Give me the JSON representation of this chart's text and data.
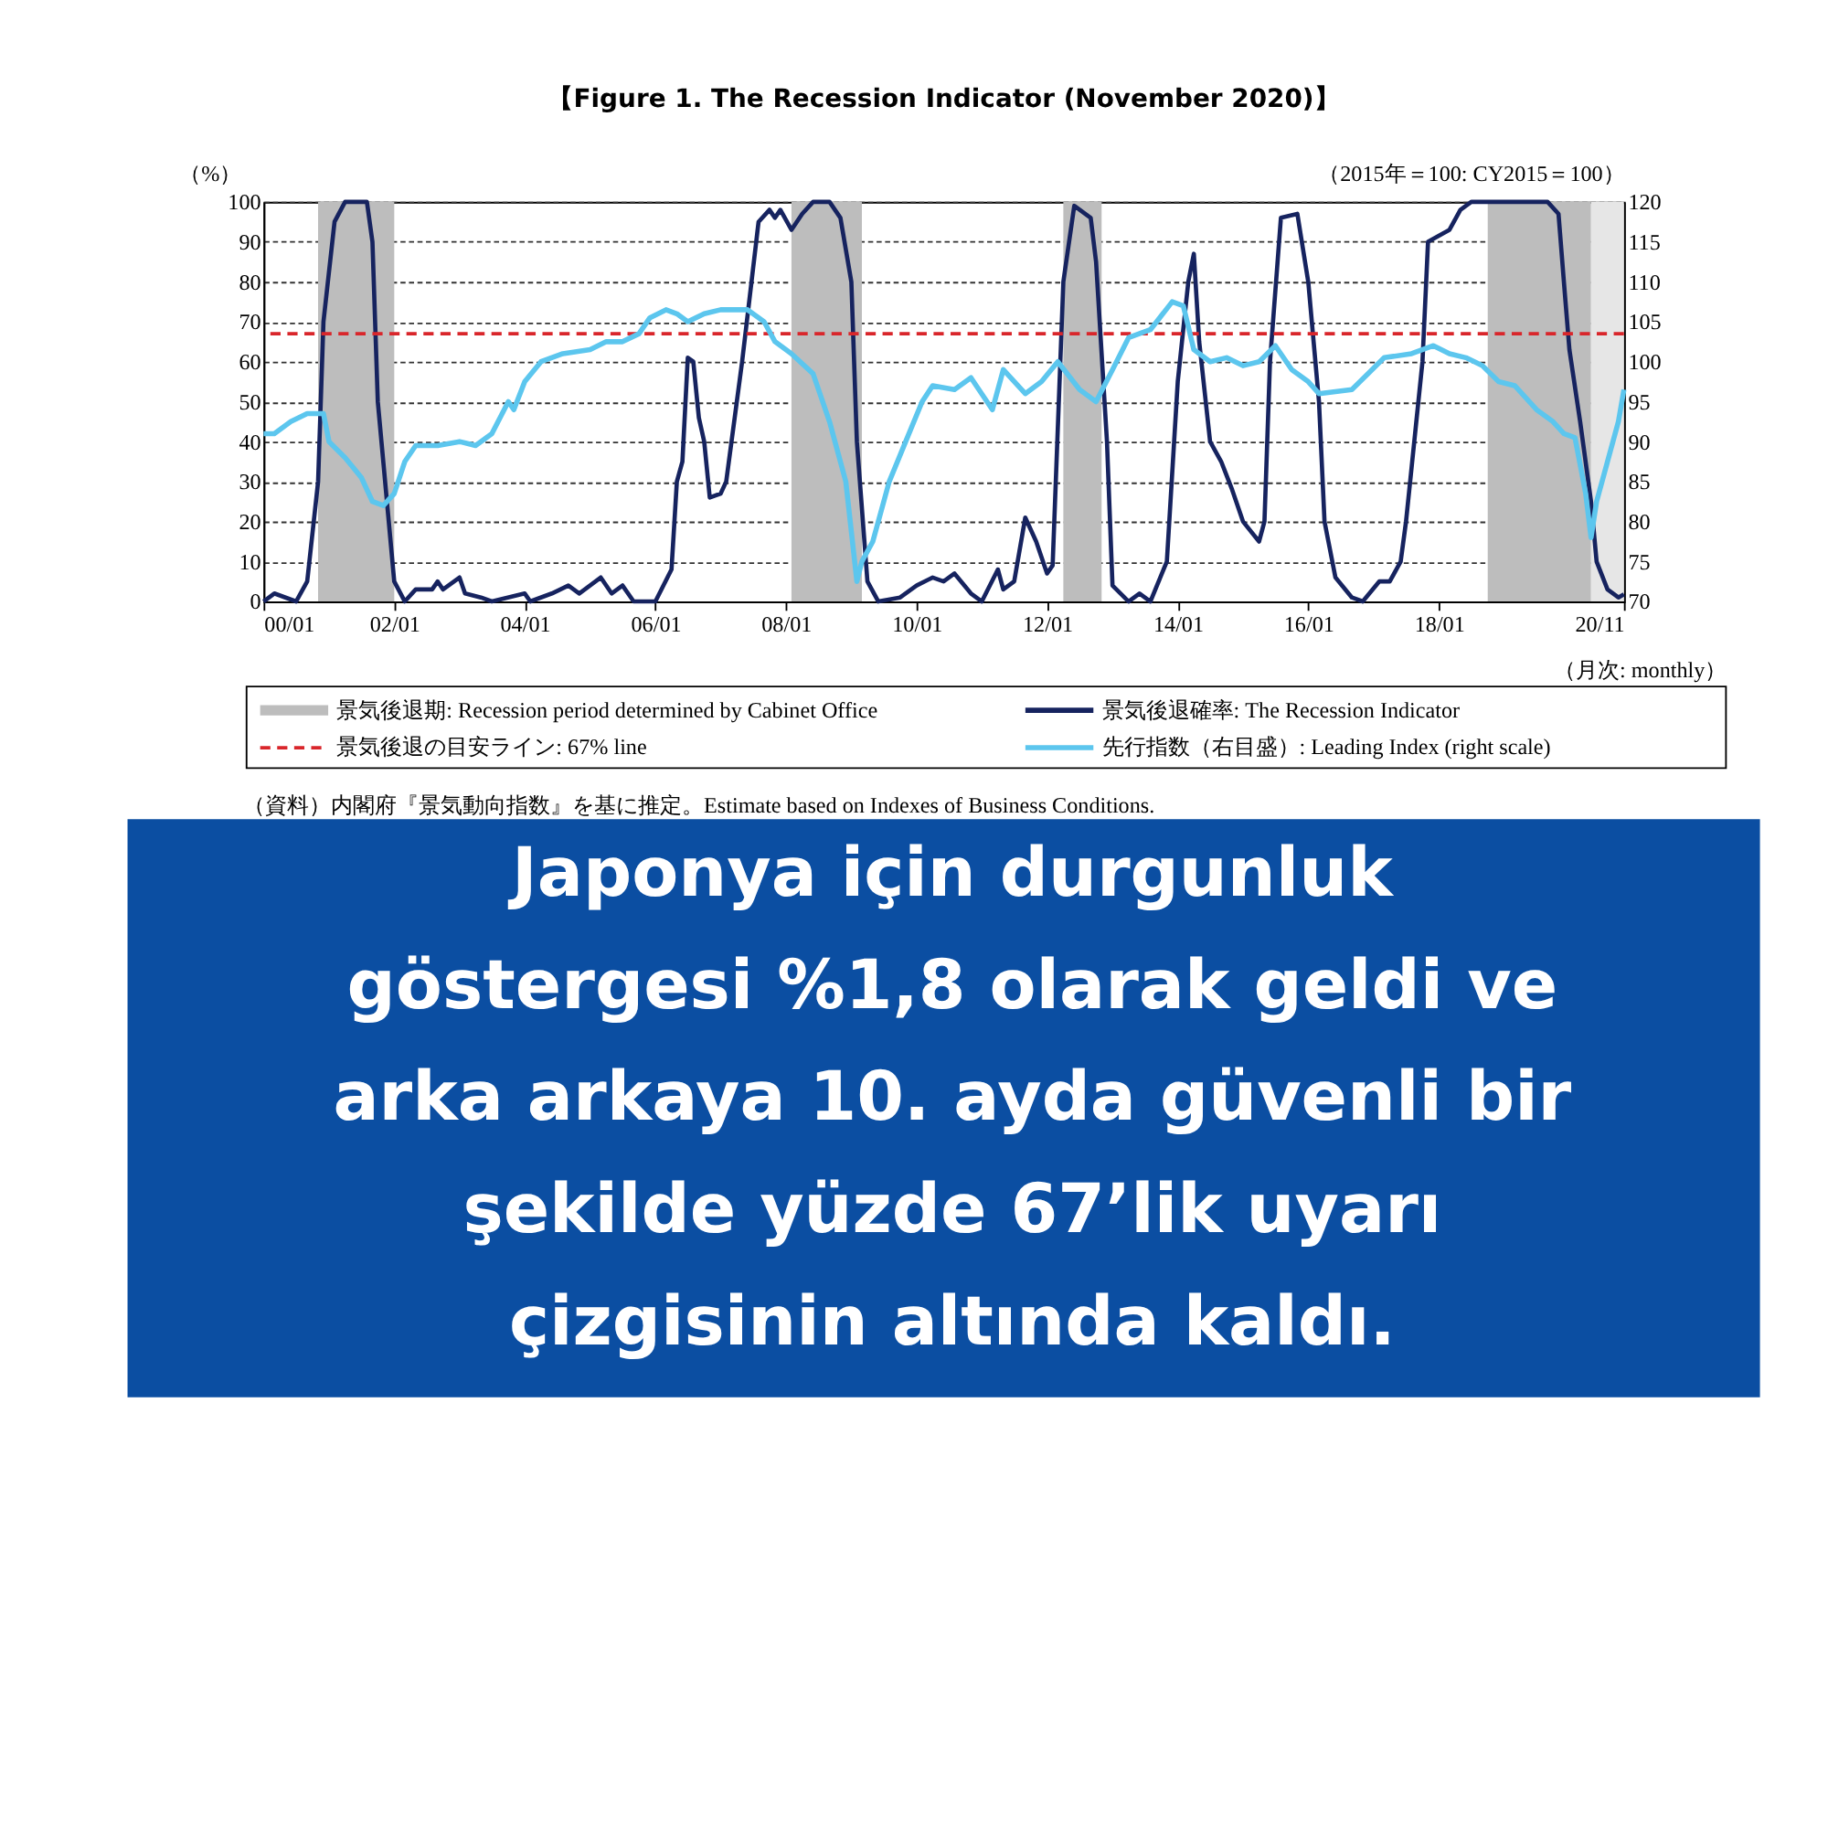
{
  "chart_data": {
    "type": "line",
    "title": "【Figure 1. The Recession Indicator (November 2020)】",
    "xlabel": "（月次: monthly）",
    "ylabel": "（%）",
    "y2label": "（2015年＝100: CY2015＝100）",
    "xlim": [
      "2000-01",
      "2020-11"
    ],
    "xticks": [
      {
        "value": "2000-01",
        "label": "00/01"
      },
      {
        "value": "2002-01",
        "label": "02/01"
      },
      {
        "value": "2004-01",
        "label": "04/01"
      },
      {
        "value": "2006-01",
        "label": "06/01"
      },
      {
        "value": "2008-01",
        "label": "08/01"
      },
      {
        "value": "2010-01",
        "label": "10/01"
      },
      {
        "value": "2012-01",
        "label": "12/01"
      },
      {
        "value": "2014-01",
        "label": "14/01"
      },
      {
        "value": "2016-01",
        "label": "16/01"
      },
      {
        "value": "2018-01",
        "label": "18/01"
      },
      {
        "value": "2020-11",
        "label": "20/11"
      }
    ],
    "ylim": [
      0,
      100
    ],
    "yticks": [
      0,
      10,
      20,
      30,
      40,
      50,
      60,
      70,
      80,
      90,
      100
    ],
    "y2lim": [
      70,
      120
    ],
    "y2ticks": [
      70,
      75,
      80,
      85,
      90,
      95,
      100,
      105,
      110,
      115,
      120
    ],
    "grid": "y",
    "legend": "bottom",
    "line_style": "solid",
    "marker": "none",
    "series": [
      {
        "name": "景気後退確率: The Recession Indicator",
        "color": "#16235f",
        "x": [
          "2000-01",
          "2000-03",
          "2000-07",
          "2000-09",
          "2000-11",
          "2000-12",
          "2001-02",
          "2001-04",
          "2001-08",
          "2001-09",
          "2001-10",
          "2002-01",
          "2002-03",
          "2002-05",
          "2002-08",
          "2002-09",
          "2002-10",
          "2003-01",
          "2003-02",
          "2003-05",
          "2003-07",
          "2004-01",
          "2004-02",
          "2004-06",
          "2004-09",
          "2004-11",
          "2005-03",
          "2005-05",
          "2005-07",
          "2005-09",
          "2006-01",
          "2006-04",
          "2006-05",
          "2006-06",
          "2006-07",
          "2006-08",
          "2006-09",
          "2006-10",
          "2006-11",
          "2007-01",
          "2007-02",
          "2007-05",
          "2007-08",
          "2007-10",
          "2007-11",
          "2007-12",
          "2008-02",
          "2008-04",
          "2008-06",
          "2008-09",
          "2008-11",
          "2009-01",
          "2009-02",
          "2009-04",
          "2009-06",
          "2009-10",
          "2010-01",
          "2010-04",
          "2010-06",
          "2010-08",
          "2010-11",
          "2011-01",
          "2011-04",
          "2011-05",
          "2011-07",
          "2011-09",
          "2011-11",
          "2012-01",
          "2012-02",
          "2012-04",
          "2012-06",
          "2012-09",
          "2012-10",
          "2012-12",
          "2013-01",
          "2013-04",
          "2013-06",
          "2013-08",
          "2013-11",
          "2014-01",
          "2014-03",
          "2014-04",
          "2014-05",
          "2014-07",
          "2014-09",
          "2014-11",
          "2015-01",
          "2015-04",
          "2015-05",
          "2015-06",
          "2015-08",
          "2015-11",
          "2016-01",
          "2016-03",
          "2016-04",
          "2016-06",
          "2016-09",
          "2016-11",
          "2017-02",
          "2017-04",
          "2017-06",
          "2017-07",
          "2017-10",
          "2017-11",
          "2018-03",
          "2018-05",
          "2018-07",
          "2019-05",
          "2019-09",
          "2019-11",
          "2019-12",
          "2020-01",
          "2020-03",
          "2020-05",
          "2020-06",
          "2020-08",
          "2020-10",
          "2020-11"
        ],
        "values": [
          0,
          2,
          0,
          5,
          30,
          70,
          95,
          100,
          100,
          90,
          50,
          5,
          0,
          3,
          3,
          5,
          3,
          6,
          2,
          1,
          0,
          2,
          0,
          2,
          4,
          2,
          6,
          2,
          4,
          0,
          0,
          8,
          30,
          35,
          61,
          60,
          46,
          40,
          26,
          27,
          30,
          60,
          95,
          98,
          96,
          98,
          93,
          97,
          100,
          100,
          96,
          80,
          40,
          5,
          0,
          1,
          4,
          6,
          5,
          7,
          2,
          0,
          8,
          3,
          5,
          21,
          15,
          7,
          9,
          80,
          99,
          96,
          85,
          40,
          4,
          0,
          2,
          0,
          10,
          55,
          80,
          87,
          65,
          40,
          35,
          28,
          20,
          15,
          20,
          60,
          96,
          97,
          80,
          50,
          20,
          6,
          1,
          0,
          5,
          5,
          10,
          20,
          60,
          90,
          93,
          98,
          100,
          100,
          100,
          97,
          80,
          63,
          45,
          25,
          10,
          3,
          1,
          1.8
        ]
      },
      {
        "name": "先行指数（右目盛）: Leading Index (right scale)",
        "color": "#5cc6ee",
        "axis": "y2",
        "x": [
          "2000-01",
          "2000-03",
          "2000-06",
          "2000-09",
          "2000-12",
          "2001-01",
          "2001-04",
          "2001-07",
          "2001-09",
          "2001-11",
          "2002-01",
          "2002-03",
          "2002-05",
          "2002-09",
          "2003-01",
          "2003-04",
          "2003-07",
          "2003-10",
          "2003-11",
          "2004-01",
          "2004-04",
          "2004-08",
          "2005-01",
          "2005-04",
          "2005-07",
          "2005-10",
          "2005-12",
          "2006-03",
          "2006-05",
          "2006-07",
          "2006-10",
          "2007-01",
          "2007-06",
          "2007-09",
          "2007-11",
          "2008-02",
          "2008-06",
          "2008-09",
          "2008-12",
          "2009-02",
          "2009-03",
          "2009-05",
          "2009-08",
          "2009-11",
          "2010-02",
          "2010-04",
          "2010-08",
          "2010-11",
          "2011-03",
          "2011-05",
          "2011-09",
          "2011-12",
          "2012-03",
          "2012-07",
          "2012-10",
          "2013-01",
          "2013-04",
          "2013-08",
          "2013-12",
          "2014-02",
          "2014-04",
          "2014-07",
          "2014-10",
          "2015-01",
          "2015-04",
          "2015-07",
          "2015-10",
          "2016-01",
          "2016-03",
          "2016-09",
          "2016-12",
          "2017-03",
          "2017-08",
          "2017-12",
          "2018-03",
          "2018-06",
          "2018-09",
          "2018-12",
          "2019-03",
          "2019-07",
          "2019-10",
          "2019-12",
          "2020-02",
          "2020-04",
          "2020-05",
          "2020-06",
          "2020-08",
          "2020-10",
          "2020-11"
        ],
        "values": [
          91,
          91,
          92.5,
          93.5,
          93.5,
          90,
          88,
          85.5,
          82.5,
          82,
          83.5,
          87.5,
          89.5,
          89.5,
          90,
          89.5,
          91,
          95,
          94,
          97.5,
          100,
          101,
          101.5,
          102.5,
          102.5,
          103.5,
          105.5,
          106.5,
          106,
          105,
          106,
          106.5,
          106.5,
          105,
          102.5,
          101,
          98.5,
          92.5,
          85,
          72.5,
          75,
          77.5,
          85,
          90,
          95,
          97,
          96.5,
          98,
          94,
          99,
          96,
          97.5,
          100,
          96.5,
          95,
          99,
          103,
          104,
          107.5,
          107,
          101.5,
          100,
          100.5,
          99.5,
          100,
          102,
          99,
          97.5,
          96,
          96.5,
          98.5,
          100.5,
          101,
          102,
          101,
          100.5,
          99.5,
          97.5,
          97,
          94,
          92.5,
          91,
          90.5,
          83.5,
          78,
          82.5,
          87.5,
          92.5,
          96.5
        ]
      }
    ],
    "bands": [
      {
        "axis": "x",
        "from": "2000-11",
        "to": "2002-01",
        "label": "景気後退期: Recession period determined by Cabinet Office",
        "color": "#bdbdbd"
      },
      {
        "axis": "x",
        "from": "2008-02",
        "to": "2009-03",
        "color": "#bdbdbd"
      },
      {
        "axis": "x",
        "from": "2012-04",
        "to": "2012-11",
        "color": "#bdbdbd"
      },
      {
        "axis": "x",
        "from": "2018-10",
        "to": "2020-05",
        "color": "#bdbdbd"
      },
      {
        "axis": "x",
        "from": "2020-05",
        "to": "2020-11",
        "color": "#e6e6e6"
      }
    ],
    "ref_lines": [
      {
        "axis": "y",
        "value": 67,
        "label": "景気後退の目安ライン: 67% line",
        "color": "#d9262b",
        "line_style": "dashed"
      }
    ],
    "annotations": [
      "（資料）内閣府『景気動向指数』を基に推定。Estimate based on Indexes of Business Conditions.",
      "Japonya için durgunluk göstergesi %1,8 olarak geldi ve arka arkaya 10. ayda güvenli bir şekilde yüzde 67’lik uyarı çizgisinin altında kaldı."
    ]
  }
}
